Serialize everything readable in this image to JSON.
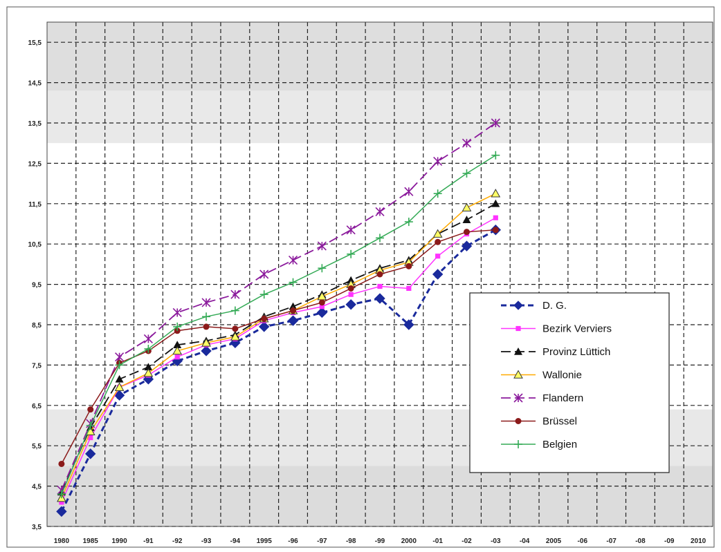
{
  "chart_data": {
    "type": "line",
    "title": "",
    "xlabel": "",
    "ylabel": "",
    "categories": [
      "1980",
      "1985",
      "1990",
      "-91",
      "-92",
      "-93",
      "-94",
      "1995",
      "-96",
      "-97",
      "-98",
      "-99",
      "2000",
      "-01",
      "-02",
      "-03",
      "-04",
      "2005",
      "-06",
      "-07",
      "-08",
      "-09",
      "2010"
    ],
    "y_ticks": [
      "3,5",
      "4,5",
      "5,5",
      "6,5",
      "7,5",
      "8,5",
      "9,5",
      "10,5",
      "11,5",
      "12,5",
      "13,5",
      "14,5",
      "15,5"
    ],
    "ylim": [
      3.5,
      16.0
    ],
    "grid": true,
    "legend_position": "right",
    "series": [
      {
        "name": "D. G.",
        "color": "#1a2a9c",
        "dash": "dashed",
        "marker": "diamond",
        "values": [
          3.87,
          5.3,
          6.75,
          7.15,
          7.6,
          7.85,
          8.05,
          8.45,
          8.6,
          8.8,
          9.0,
          9.15,
          8.5,
          9.75,
          10.45,
          10.85,
          null,
          null,
          null,
          null,
          null,
          null,
          null
        ]
      },
      {
        "name": "Bezirk Verviers",
        "color": "#ff33ff",
        "dash": "solid",
        "marker": "square",
        "values": [
          4.1,
          5.7,
          6.95,
          7.25,
          7.7,
          8.0,
          8.15,
          8.6,
          8.8,
          8.95,
          9.25,
          9.45,
          9.4,
          10.2,
          10.75,
          11.15,
          null,
          null,
          null,
          null,
          null,
          null,
          null
        ]
      },
      {
        "name": "Provinz Lüttich",
        "color": "#111111",
        "dash": "longdash",
        "marker": "triangle-filled",
        "values": [
          4.35,
          5.95,
          7.15,
          7.45,
          8.0,
          8.1,
          8.25,
          8.7,
          8.95,
          9.25,
          9.6,
          9.9,
          10.1,
          10.75,
          11.1,
          11.5,
          null,
          null,
          null,
          null,
          null,
          null,
          null
        ]
      },
      {
        "name": "Wallonie",
        "color": "#ffaa00",
        "dash": "solid",
        "marker": "triangle-open",
        "values": [
          4.2,
          5.85,
          6.95,
          7.3,
          7.85,
          8.05,
          8.2,
          8.65,
          8.85,
          9.2,
          9.5,
          9.85,
          10.05,
          10.75,
          11.4,
          11.75,
          null,
          null,
          null,
          null,
          null,
          null,
          null
        ]
      },
      {
        "name": "Flandern",
        "color": "#8b1a9c",
        "dash": "longdash",
        "marker": "star",
        "values": [
          4.4,
          6.05,
          7.7,
          8.15,
          8.8,
          9.05,
          9.25,
          9.75,
          10.1,
          10.45,
          10.85,
          11.3,
          11.8,
          12.55,
          13.0,
          13.5,
          null,
          null,
          null,
          null,
          null,
          null,
          null
        ]
      },
      {
        "name": "Brüssel",
        "color": "#8b1a1a",
        "dash": "solid",
        "marker": "circle",
        "values": [
          5.05,
          6.4,
          7.55,
          7.85,
          8.35,
          8.45,
          8.4,
          8.65,
          8.85,
          9.05,
          9.4,
          9.75,
          9.95,
          10.55,
          10.8,
          10.85,
          null,
          null,
          null,
          null,
          null,
          null,
          null
        ]
      },
      {
        "name": "Belgien",
        "color": "#33aa55",
        "dash": "solid",
        "marker": "plus",
        "values": [
          4.3,
          6.0,
          7.5,
          7.9,
          8.45,
          8.7,
          8.85,
          9.25,
          9.55,
          9.9,
          10.25,
          10.65,
          11.05,
          11.75,
          12.25,
          12.7,
          null,
          null,
          null,
          null,
          null,
          null,
          null
        ]
      }
    ]
  }
}
